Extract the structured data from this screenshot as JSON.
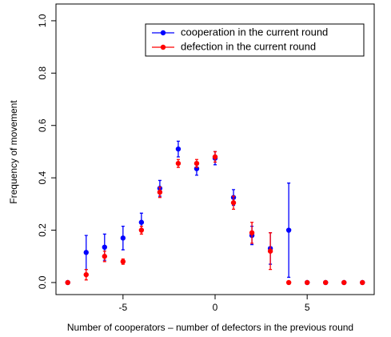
{
  "chart_data": {
    "type": "scatter",
    "xlabel": "Number of cooperators – number of defectors in the previous round",
    "ylabel": "Frequency of movement",
    "x": [
      -8,
      -7,
      -6,
      -5,
      -4,
      -3,
      -2,
      -1,
      0,
      1,
      2,
      3,
      4,
      5,
      6,
      7,
      8
    ],
    "series": [
      {
        "name": "cooperation in the current round",
        "color": "#0000ff",
        "values": [
          0,
          0.115,
          0.135,
          0.17,
          0.23,
          0.36,
          0.51,
          0.435,
          0.475,
          0.325,
          0.18,
          0.13,
          0.2,
          0,
          0,
          0,
          0
        ],
        "errors": [
          0,
          0.065,
          0.05,
          0.045,
          0.035,
          0.03,
          0.03,
          0.025,
          0.025,
          0.03,
          0.035,
          0.06,
          0.18,
          0,
          0,
          0,
          0
        ]
      },
      {
        "name": "defection in the current round",
        "color": "#ff0000",
        "values": [
          0,
          0.03,
          0.1,
          0.08,
          0.2,
          0.345,
          0.455,
          0.455,
          0.48,
          0.305,
          0.19,
          0.12,
          0,
          0,
          0,
          0,
          0
        ],
        "errors": [
          0,
          0.02,
          0.02,
          0.01,
          0.015,
          0.02,
          0.015,
          0.015,
          0.02,
          0.025,
          0.04,
          0.07,
          0,
          0,
          0,
          0,
          0
        ]
      }
    ],
    "xlim": [
      -8.64,
      8.64
    ],
    "xticks": [
      -5,
      0,
      5
    ],
    "ylim": [
      -0.046,
      1.064
    ],
    "yticks": [
      {
        "value": 0,
        "label": "0.0"
      },
      0.2,
      0.4,
      0.6,
      0.8,
      {
        "value": 1,
        "label": "1.0"
      }
    ],
    "legend": "topright"
  }
}
